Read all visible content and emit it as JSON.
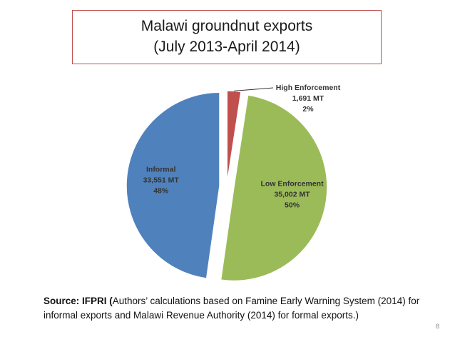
{
  "slide": {
    "title_line1": "Malawi groundnut exports",
    "title_line2": "(July 2013-April 2014)",
    "source_bold": "Source: IFPRI (",
    "source_rest": "Authors’ calculations based on Famine Early Warning System (2014) for informal exports and Malawi Revenue Authority (2014) for formal exports.)",
    "page_number": "8"
  },
  "chart_data": {
    "type": "pie",
    "title": "Malawi groundnut exports (July 2013-April 2014)",
    "unit": "MT",
    "exploded": true,
    "slices": [
      {
        "name": "High Enforcement",
        "value": 1691,
        "value_label": "1,691 MT",
        "percent_label": "2%",
        "color": "#c0504d"
      },
      {
        "name": "Low Enforcement",
        "value": 35002,
        "value_label": "35,002 MT",
        "percent_label": "50%",
        "color": "#9bbb59"
      },
      {
        "name": "Informal",
        "value": 33551,
        "value_label": "33,551 MT",
        "percent_label": "48%",
        "color": "#4f81bd"
      }
    ]
  }
}
